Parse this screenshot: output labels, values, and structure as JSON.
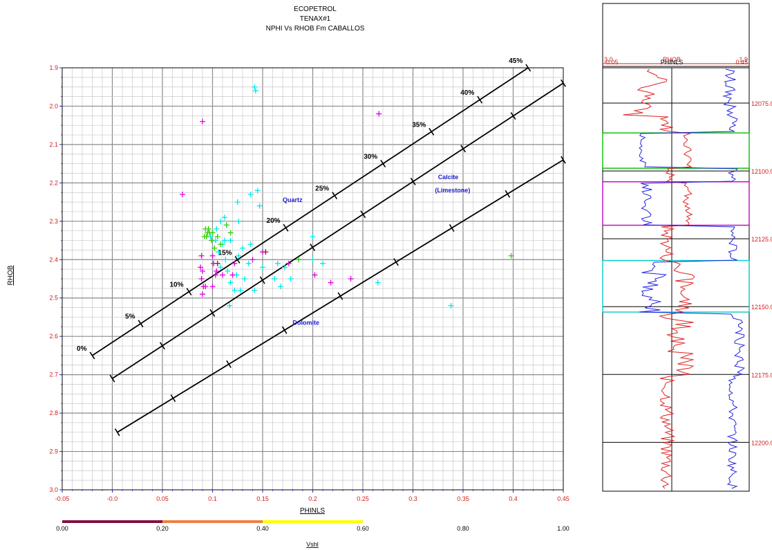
{
  "header": {
    "line1": "ECOPETROL",
    "line2": "TENAX#1",
    "line3": "NPHI Vs RHOB Fm CABALLOS"
  },
  "chart_data": {
    "type": "scatter",
    "xlabel": "PHINLS",
    "ylabel": "RHOB",
    "xlim": [
      -0.05,
      0.45
    ],
    "ylim": [
      3.0,
      1.9
    ],
    "y_inverted": true,
    "grid": true,
    "x_ticks": [
      "-0.05",
      "-0.0",
      "0.05",
      "0.1",
      "0.15",
      "0.2",
      "0.25",
      "0.3",
      "0.35",
      "0.4",
      "0.45"
    ],
    "y_ticks": [
      "1.9",
      "2.0",
      "2.1",
      "2.2",
      "2.3",
      "2.4",
      "2.5",
      "2.6",
      "2.7",
      "2.8",
      "2.9",
      "3.0"
    ],
    "lithology_lines": [
      {
        "name": "Quartz",
        "start": [
          -0.02,
          2.65
        ],
        "end": [
          0.415,
          1.9
        ],
        "ticks": [
          {
            "t": 0.0,
            "label": "0%"
          },
          {
            "t": 0.111,
            "label": "5%"
          },
          {
            "t": 0.222,
            "label": "10%"
          },
          {
            "t": 0.333,
            "label": "15%"
          },
          {
            "t": 0.444,
            "label": "20%"
          },
          {
            "t": 0.556,
            "label": "25%"
          },
          {
            "t": 0.667,
            "label": "30%"
          },
          {
            "t": 0.778,
            "label": "35%"
          },
          {
            "t": 0.889,
            "label": "40%"
          },
          {
            "t": 1.0,
            "label": "45%"
          }
        ]
      },
      {
        "name": "Calcite (Limestone)",
        "start": [
          0.0,
          2.71
        ],
        "end": [
          0.45,
          1.94
        ],
        "ticks": [
          0.0,
          0.111,
          0.222,
          0.333,
          0.444,
          0.556,
          0.667,
          0.778,
          0.889,
          1.0
        ]
      },
      {
        "name": "Dolomite",
        "start": [
          0.005,
          2.85
        ],
        "end": [
          0.45,
          2.14
        ],
        "ticks": [
          0.0,
          0.125,
          0.25,
          0.375,
          0.5,
          0.625,
          0.75,
          0.875,
          1.0
        ]
      }
    ],
    "annotations": [
      {
        "text": "Quartz",
        "x": 0.17,
        "y": 2.25
      },
      {
        "text": "Calcite",
        "x": 0.325,
        "y": 2.19
      },
      {
        "text": "(Limestone)",
        "x": 0.322,
        "y": 2.225
      },
      {
        "text": "Dolomite",
        "x": 0.18,
        "y": 2.57
      }
    ],
    "series": [
      {
        "color": "#00e8e8",
        "points": [
          [
            0.142,
            1.95
          ],
          [
            0.143,
            1.96
          ],
          [
            0.138,
            2.23
          ],
          [
            0.147,
            2.26
          ],
          [
            0.112,
            2.29
          ],
          [
            0.108,
            2.3
          ],
          [
            0.114,
            2.31
          ],
          [
            0.104,
            2.32
          ],
          [
            0.126,
            2.3
          ],
          [
            0.098,
            2.34
          ],
          [
            0.11,
            2.36
          ],
          [
            0.118,
            2.35
          ],
          [
            0.106,
            2.38
          ],
          [
            0.13,
            2.37
          ],
          [
            0.113,
            2.4
          ],
          [
            0.126,
            2.39
          ],
          [
            0.136,
            2.41
          ],
          [
            0.108,
            2.42
          ],
          [
            0.115,
            2.43
          ],
          [
            0.124,
            2.44
          ],
          [
            0.118,
            2.46
          ],
          [
            0.132,
            2.45
          ],
          [
            0.15,
            2.42
          ],
          [
            0.165,
            2.41
          ],
          [
            0.172,
            2.42
          ],
          [
            0.178,
            2.45
          ],
          [
            0.186,
            2.4
          ],
          [
            0.2,
            2.4
          ],
          [
            0.21,
            2.41
          ],
          [
            0.122,
            2.48
          ],
          [
            0.128,
            2.48
          ],
          [
            0.142,
            2.48
          ],
          [
            0.117,
            2.52
          ],
          [
            0.265,
            2.46
          ],
          [
            0.338,
            2.52
          ],
          [
            0.2,
            2.34
          ],
          [
            0.162,
            2.45
          ],
          [
            0.168,
            2.47
          ],
          [
            0.138,
            2.36
          ],
          [
            0.103,
            2.35
          ],
          [
            0.112,
            2.35
          ],
          [
            0.125,
            2.25
          ],
          [
            0.145,
            2.22
          ]
        ]
      },
      {
        "color": "#33cc00",
        "points": [
          [
            0.093,
            2.32
          ],
          [
            0.095,
            2.33
          ],
          [
            0.097,
            2.33
          ],
          [
            0.092,
            2.34
          ],
          [
            0.1,
            2.33
          ],
          [
            0.094,
            2.34
          ],
          [
            0.096,
            2.32
          ],
          [
            0.099,
            2.35
          ],
          [
            0.105,
            2.34
          ],
          [
            0.108,
            2.36
          ],
          [
            0.114,
            2.31
          ],
          [
            0.118,
            2.33
          ],
          [
            0.102,
            2.37
          ],
          [
            0.186,
            2.4
          ],
          [
            0.398,
            2.39
          ]
        ]
      },
      {
        "color": "#e000e0",
        "points": [
          [
            0.09,
            2.04
          ],
          [
            0.07,
            2.23
          ],
          [
            0.088,
            2.42
          ],
          [
            0.09,
            2.43
          ],
          [
            0.089,
            2.45
          ],
          [
            0.091,
            2.47
          ],
          [
            0.09,
            2.49
          ],
          [
            0.093,
            2.47
          ],
          [
            0.1,
            2.47
          ],
          [
            0.103,
            2.44
          ],
          [
            0.101,
            2.41
          ],
          [
            0.1,
            2.39
          ],
          [
            0.104,
            2.43
          ],
          [
            0.11,
            2.44
          ],
          [
            0.12,
            2.44
          ],
          [
            0.122,
            2.41
          ],
          [
            0.14,
            2.4
          ],
          [
            0.15,
            2.38
          ],
          [
            0.176,
            2.41
          ],
          [
            0.202,
            2.44
          ],
          [
            0.218,
            2.46
          ],
          [
            0.238,
            2.45
          ],
          [
            0.266,
            2.02
          ],
          [
            0.089,
            2.39
          ]
        ]
      },
      {
        "color": "#a01040",
        "points": [
          [
            0.153,
            2.38
          ],
          [
            0.105,
            2.41
          ]
        ]
      }
    ],
    "colorbar": {
      "title": "Vshl",
      "ticks": [
        "0.00",
        "0.20",
        "0.40",
        "0.60",
        "0.80",
        "1.00"
      ],
      "segments": [
        {
          "from": 0.0,
          "to": 0.2,
          "color": "#801040"
        },
        {
          "from": 0.2,
          "to": 0.4,
          "color": "#f08040"
        },
        {
          "from": 0.4,
          "to": 0.6,
          "color": "#ffff00"
        }
      ]
    }
  },
  "log_panel": {
    "rhob": {
      "label": "RHOB",
      "left": "3.0",
      "right": "1.9",
      "color": "#d02020"
    },
    "phinls": {
      "label": "PHINLS",
      "left": "-0.05",
      "right": "0.45",
      "color": "#2020d0"
    },
    "depths": [
      "12075.0",
      "12100.0",
      "12125.0",
      "12150.0",
      "12175.0",
      "12200.0"
    ],
    "depth_range": [
      12062,
      12218
    ],
    "zones": [
      {
        "from": 12086,
        "to": 12099,
        "color": "#00c000"
      },
      {
        "from": 12104,
        "to": 12120,
        "color": "#c000c0"
      },
      {
        "from": 12133,
        "to": 12152,
        "color": "#00c8c8"
      }
    ]
  }
}
